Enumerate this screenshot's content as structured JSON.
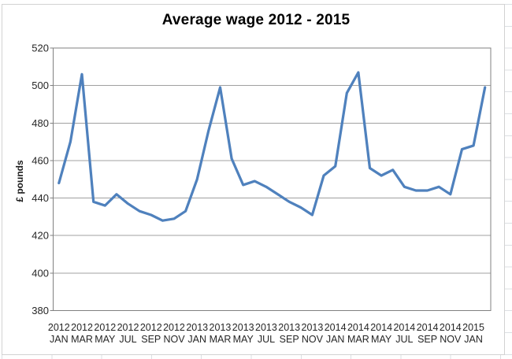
{
  "chart_data": {
    "type": "line",
    "title": "Average wage 2012 - 2015",
    "ylabel": "£ pounds",
    "xlabel": "",
    "ylim": [
      380,
      520
    ],
    "yticks": [
      380,
      400,
      420,
      440,
      460,
      480,
      500,
      520
    ],
    "xtick_interval": 2,
    "grid": "horizontal",
    "legend_position": "none",
    "categories": [
      "2012 JAN",
      "2012 FEB",
      "2012 MAR",
      "2012 APR",
      "2012 MAY",
      "2012 JUN",
      "2012 JUL",
      "2012 AUG",
      "2012 SEP",
      "2012 OCT",
      "2012 NOV",
      "2012 DEC",
      "2013 JAN",
      "2013 FEB",
      "2013 MAR",
      "2013 APR",
      "2013 MAY",
      "2013 JUN",
      "2013 JUL",
      "2013 AUG",
      "2013 SEP",
      "2013 OCT",
      "2013 NOV",
      "2013 DEC",
      "2014 JAN",
      "2014 FEB",
      "2014 MAR",
      "2014 APR",
      "2014 MAY",
      "2014 JUN",
      "2014 JUL",
      "2014 AUG",
      "2014 SEP",
      "2014 OCT",
      "2014 NOV",
      "2014 DEC",
      "2015 JAN",
      "2015 FEB"
    ],
    "visible_x_tick_labels": [
      "2012 JAN",
      "2012 MAR",
      "2012 MAY",
      "2012 JUL",
      "2012 SEP",
      "2012 NOV",
      "2013 JAN",
      "2013 MAR",
      "2013 MAY",
      "2013 JUL",
      "2013 SEP",
      "2013 NOV",
      "2014 JAN",
      "2014 MAR",
      "2014 MAY",
      "2014 JUL",
      "2014 SEP",
      "2014 NOV",
      "2015 JAN"
    ],
    "series": [
      {
        "name": "Average wage",
        "color": "#4F81BD",
        "values": [
          448,
          470,
          506,
          438,
          436,
          442,
          437,
          433,
          431,
          428,
          429,
          433,
          450,
          476,
          499,
          461,
          447,
          449,
          446,
          442,
          438,
          435,
          431,
          452,
          457,
          496,
          507,
          456,
          452,
          455,
          446,
          444,
          444,
          446,
          442,
          466,
          468,
          499
        ]
      }
    ]
  },
  "colors": {
    "series_line": "#4F81BD",
    "gridline": "#A0A0A0",
    "plot_border": "#808080",
    "axis_text": "#262626",
    "sheet_grid": "#DCDFE3",
    "chart_border": "#D2D2D2"
  }
}
